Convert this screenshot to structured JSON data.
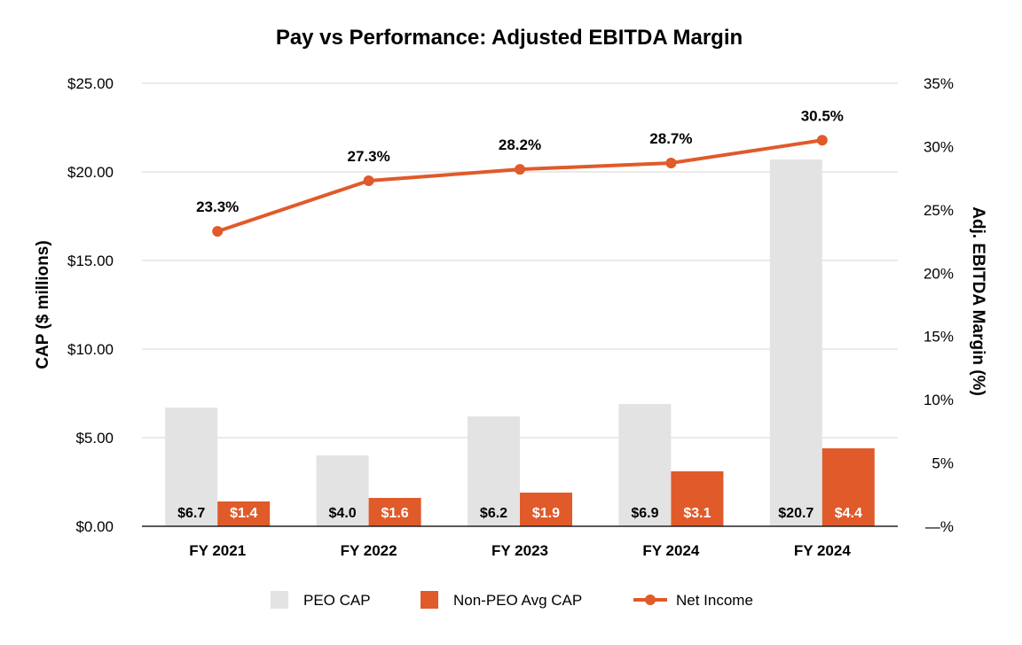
{
  "chart_data": {
    "type": "bar",
    "title": "Pay vs Performance: Adjusted EBITDA Margin",
    "categories": [
      "FY 2021",
      "FY 2022",
      "FY 2023",
      "FY 2024",
      "FY 2024"
    ],
    "series": [
      {
        "name": "PEO CAP",
        "kind": "bar",
        "axis": "left",
        "values": [
          6.7,
          4.0,
          6.2,
          6.9,
          20.7
        ],
        "labels": [
          "$6.7",
          "$4.0",
          "$6.2",
          "$6.9",
          "$20.7"
        ],
        "color": "#e3e3e3",
        "label_color": "#000000"
      },
      {
        "name": "Non-PEO Avg CAP",
        "kind": "bar",
        "axis": "left",
        "values": [
          1.4,
          1.6,
          1.9,
          3.1,
          4.4
        ],
        "labels": [
          "$1.4",
          "$1.6",
          "$1.9",
          "$3.1",
          "$4.4"
        ],
        "color": "#e05a2a",
        "label_color": "#ffffff"
      },
      {
        "name": "Net Income",
        "kind": "line",
        "axis": "right",
        "values": [
          23.3,
          27.3,
          28.2,
          28.7,
          30.5
        ],
        "labels": [
          "23.3%",
          "27.3%",
          "28.2%",
          "28.7%",
          "30.5%"
        ],
        "color": "#e05a2a"
      }
    ],
    "ylabel": "CAP ($ millions)",
    "ylim": [
      0,
      25
    ],
    "yticks": [
      "$0.00",
      "$5.00",
      "$10.00",
      "$15.00",
      "$20.00",
      "$25.00"
    ],
    "y2label": "Adj. EBITDA Margin (%)",
    "y2lim": [
      0,
      35
    ],
    "y2ticks": [
      "—%",
      "5%",
      "10%",
      "15%",
      "20%",
      "25%",
      "30%",
      "35%"
    ],
    "grid": true,
    "legend_position": "bottom"
  }
}
